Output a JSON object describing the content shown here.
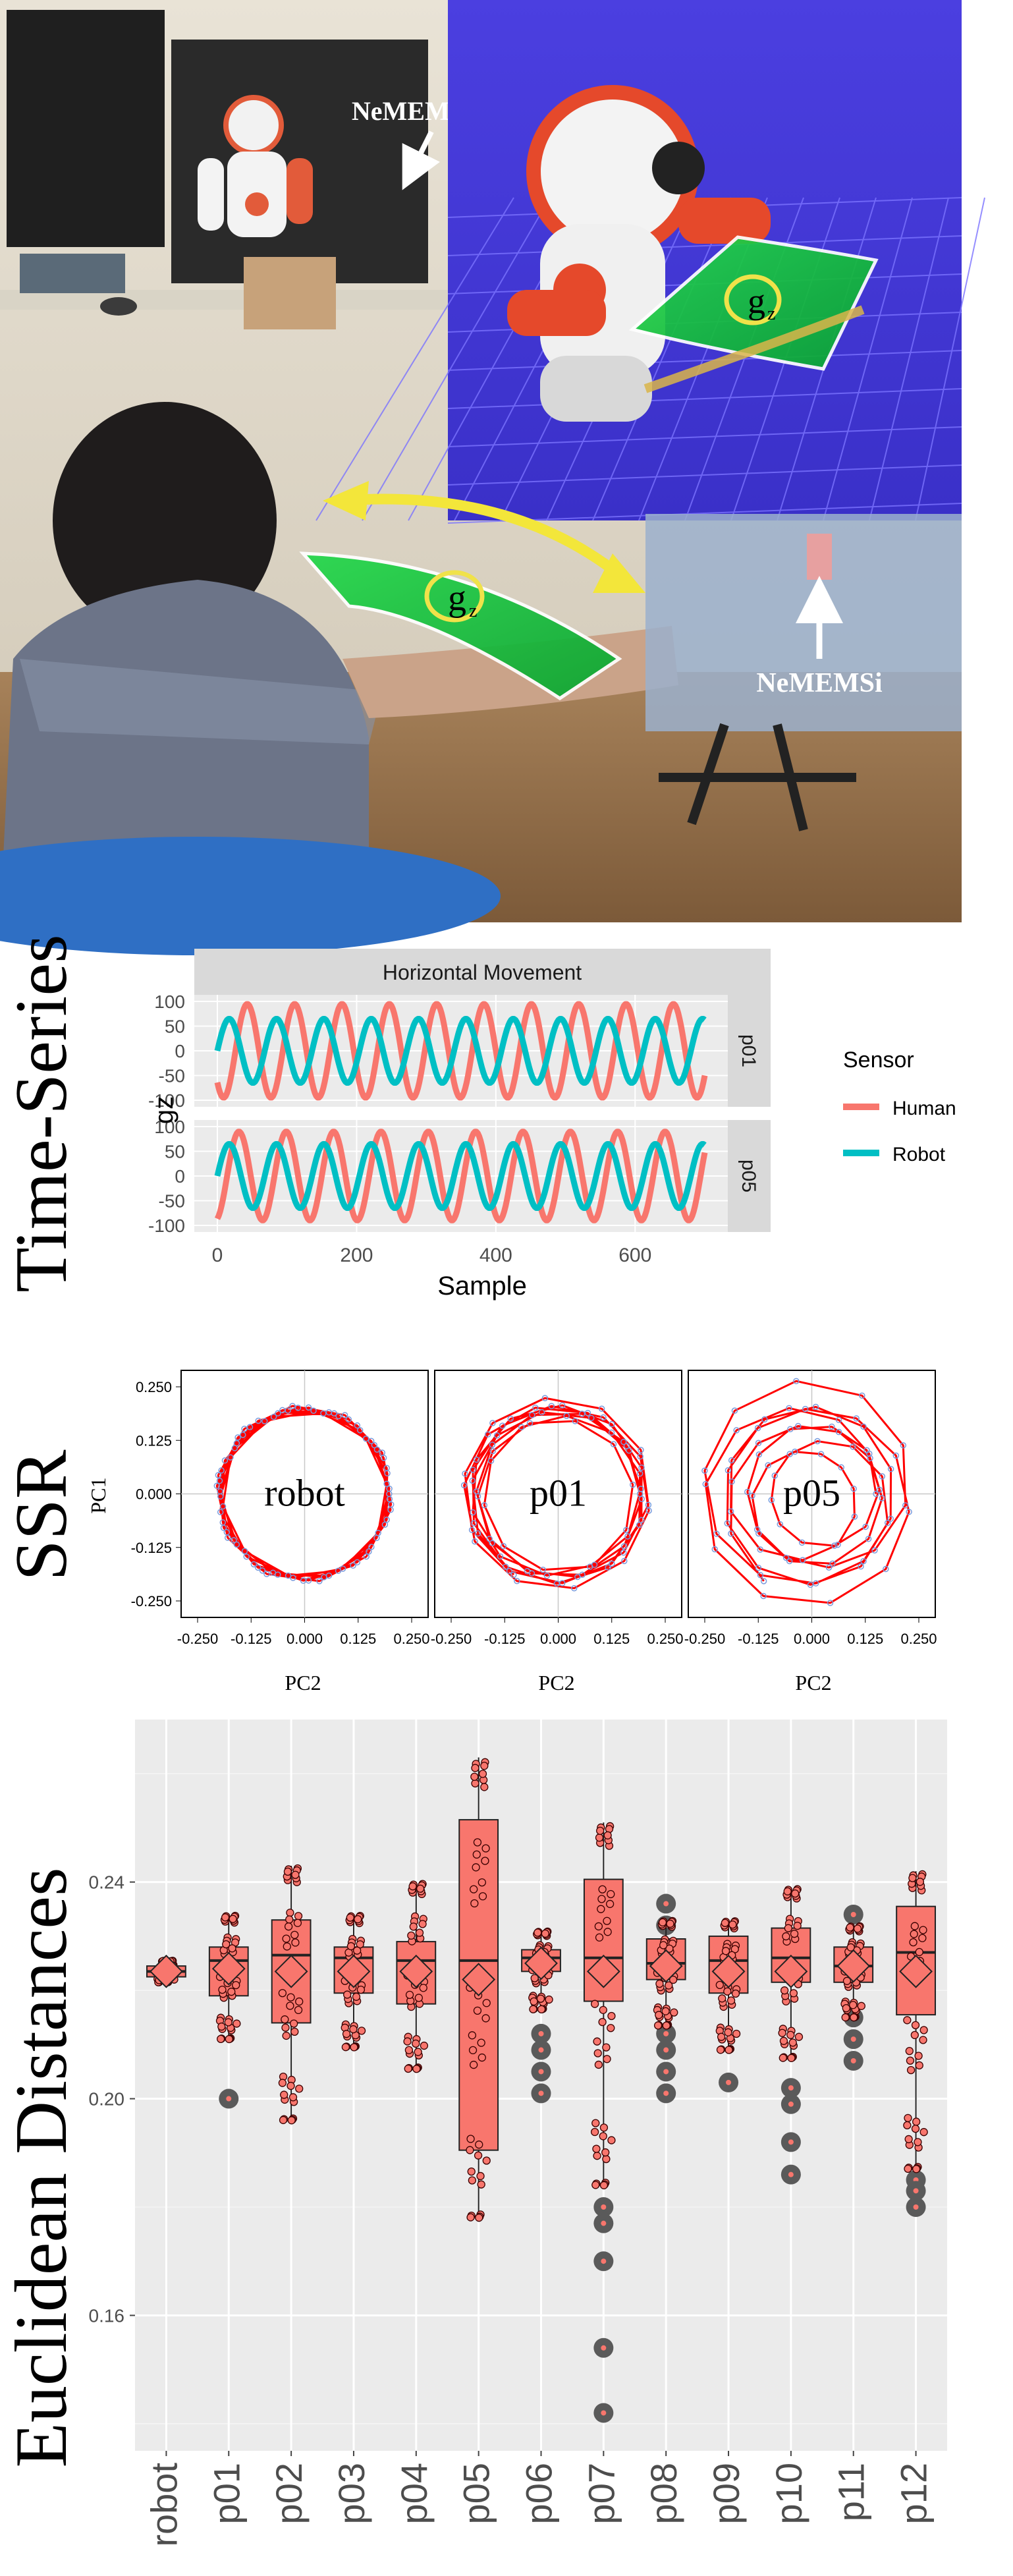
{
  "photo": {
    "label_top": "NeMEMSi",
    "label_bottom": "NeMEMSi",
    "gz_label": "g",
    "gz_sub": "z"
  },
  "sections": {
    "time_series": "Time-Series",
    "ssr": "SSR",
    "euclidean": "Euclidean Distances"
  },
  "colors": {
    "human": "#F8766D",
    "robot": "#00BFC4",
    "ssr_line": "#ff0000",
    "ssr_point": "#7a9bdc",
    "outlier": "#5a5a5a"
  },
  "chart_data": [
    {
      "type": "line",
      "title": "Horizontal Movement",
      "xlabel": "Sample",
      "ylabel": "gz",
      "xlim": [
        0,
        700
      ],
      "ylim": [
        -100,
        100
      ],
      "xticks": [
        0,
        200,
        400,
        600
      ],
      "yticks": [
        100,
        50,
        0,
        -50,
        -100
      ],
      "panels": [
        {
          "name": "p01",
          "series": [
            {
              "name": "Human",
              "color": "#F8766D",
              "amplitude": 95,
              "period": 68,
              "phase": 230,
              "x_start": 0,
              "x_end": 700
            },
            {
              "name": "Robot",
              "color": "#00BFC4",
              "amplitude": 65,
              "period": 68,
              "phase": 0,
              "x_start": 0,
              "x_end": 700
            }
          ]
        },
        {
          "name": "p05",
          "series": [
            {
              "name": "Human",
              "color": "#F8766D",
              "amplitude": 90,
              "period": 68,
              "phase": 150,
              "x_start": 0,
              "x_end": 700
            },
            {
              "name": "Robot",
              "color": "#00BFC4",
              "amplitude": 65,
              "period": 68,
              "phase": 0,
              "x_start": 0,
              "x_end": 700
            }
          ]
        }
      ],
      "legend": {
        "title": "Sensor",
        "position": "right",
        "entries": [
          "Human",
          "Robot"
        ]
      }
    },
    {
      "type": "scatter",
      "xlabel": "PC2",
      "ylabel": "PC1",
      "xlim": [
        -0.25,
        0.25
      ],
      "ylim": [
        -0.25,
        0.25
      ],
      "xtick_labels": [
        "-0.250",
        "-0.125",
        "0.000",
        "0.125",
        "0.250"
      ],
      "ytick_labels": [
        "0.250",
        "0.125",
        "0.000",
        "-0.125",
        "-0.250"
      ],
      "panels": [
        {
          "label": "robot",
          "radius": 0.2,
          "spread": 0.005
        },
        {
          "label": "p01",
          "radius": 0.2,
          "spread": 0.018
        },
        {
          "label": "p05",
          "radius": 0.18,
          "spread": 0.06
        }
      ]
    },
    {
      "type": "box",
      "ylabel": "Euclidean Distances",
      "ylim": [
        0.135,
        0.27
      ],
      "yticks": [
        0.16,
        0.2,
        0.24
      ],
      "ytick_labels": [
        "0.16",
        "0.20",
        "0.24"
      ],
      "categories": [
        "robot",
        "p01",
        "p02",
        "p03",
        "p04",
        "p05",
        "p06",
        "p07",
        "p08",
        "p09",
        "p10",
        "p11",
        "p12"
      ],
      "boxes": [
        {
          "q1": 0.2225,
          "median": 0.2235,
          "q3": 0.2245,
          "lo": 0.2215,
          "hi": 0.2255,
          "mean": 0.2235,
          "outliers": []
        },
        {
          "q1": 0.219,
          "median": 0.2255,
          "q3": 0.228,
          "lo": 0.211,
          "hi": 0.234,
          "mean": 0.224,
          "outliers": [
            0.2
          ]
        },
        {
          "q1": 0.214,
          "median": 0.2265,
          "q3": 0.233,
          "lo": 0.196,
          "hi": 0.243,
          "mean": 0.2235,
          "outliers": []
        },
        {
          "q1": 0.2195,
          "median": 0.226,
          "q3": 0.228,
          "lo": 0.2095,
          "hi": 0.234,
          "mean": 0.2235,
          "outliers": []
        },
        {
          "q1": 0.2175,
          "median": 0.2255,
          "q3": 0.229,
          "lo": 0.2055,
          "hi": 0.24,
          "mean": 0.2235,
          "outliers": []
        },
        {
          "q1": 0.1905,
          "median": 0.2255,
          "q3": 0.2515,
          "lo": 0.178,
          "hi": 0.263,
          "mean": 0.222,
          "outliers": []
        },
        {
          "q1": 0.2235,
          "median": 0.226,
          "q3": 0.2275,
          "lo": 0.2165,
          "hi": 0.231,
          "mean": 0.225,
          "outliers": [
            0.212,
            0.209,
            0.205,
            0.201
          ]
        },
        {
          "q1": 0.218,
          "median": 0.226,
          "q3": 0.2405,
          "lo": 0.184,
          "hi": 0.251,
          "mean": 0.2235,
          "outliers": [
            0.18,
            0.177,
            0.17,
            0.154,
            0.142
          ]
        },
        {
          "q1": 0.222,
          "median": 0.225,
          "q3": 0.2295,
          "lo": 0.2135,
          "hi": 0.233,
          "mean": 0.2245,
          "outliers": [
            0.236,
            0.232,
            0.212,
            0.209,
            0.205,
            0.201
          ]
        },
        {
          "q1": 0.2195,
          "median": 0.2255,
          "q3": 0.23,
          "lo": 0.209,
          "hi": 0.233,
          "mean": 0.2235,
          "outliers": [
            0.203
          ]
        },
        {
          "q1": 0.2215,
          "median": 0.226,
          "q3": 0.2315,
          "lo": 0.2075,
          "hi": 0.239,
          "mean": 0.2235,
          "outliers": [
            0.202,
            0.199,
            0.192,
            0.186
          ]
        },
        {
          "q1": 0.2215,
          "median": 0.2245,
          "q3": 0.228,
          "lo": 0.215,
          "hi": 0.232,
          "mean": 0.2245,
          "outliers": [
            0.234,
            0.215,
            0.211,
            0.207
          ]
        },
        {
          "q1": 0.2155,
          "median": 0.227,
          "q3": 0.2355,
          "lo": 0.187,
          "hi": 0.242,
          "mean": 0.2235,
          "outliers": [
            0.185,
            0.183,
            0.18
          ]
        }
      ]
    }
  ]
}
